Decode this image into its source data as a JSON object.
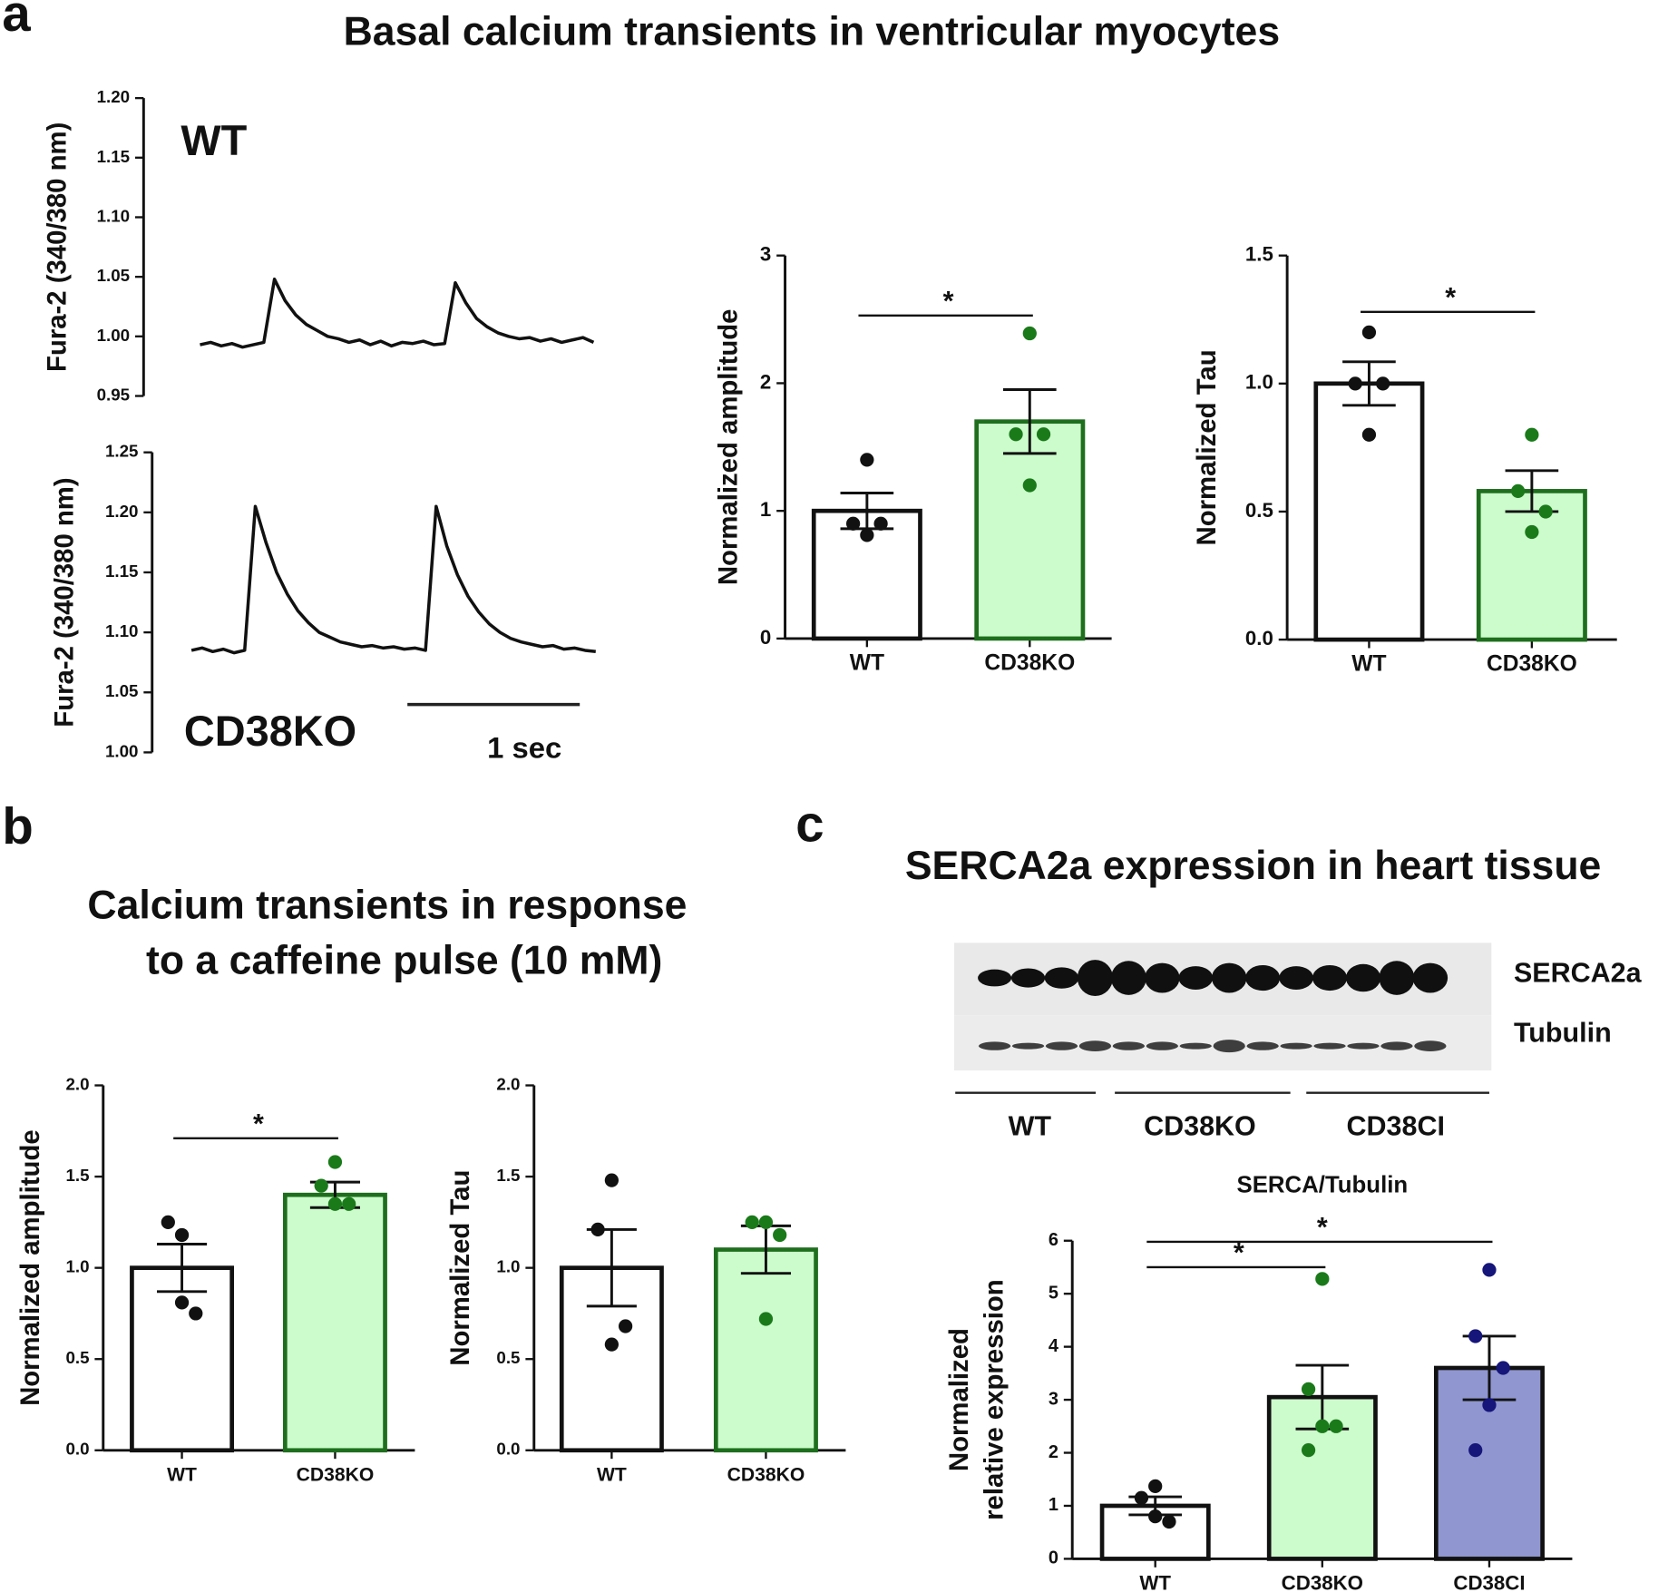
{
  "panels": [
    {
      "label": "a",
      "title": "Basal calcium transients in ventricular myocytes"
    },
    {
      "label": "b",
      "title": [
        "Calcium transients in response",
        "to a caffeine pulse (10 mM)"
      ]
    },
    {
      "label": "c",
      "title": "SERCA2a expression in heart tissue"
    }
  ],
  "blot": {
    "rows": [
      "SERCA2a",
      "Tubulin"
    ],
    "groups": [
      "WT",
      "CD38KO",
      "CD38CI"
    ]
  },
  "chart_data": [
    {
      "type": "line",
      "label": "WT",
      "ylabel": "Fura-2 (340/380 nm)",
      "color": "#111111",
      "ylim": [
        0.95,
        1.2
      ],
      "yticks": [
        0.95,
        {
          "value": 1,
          "label": "1.00"
        },
        1.05,
        {
          "value": 1.1,
          "label": "1.10"
        },
        1.15,
        {
          "value": 1.2,
          "label": "1.20"
        }
      ],
      "values": [
        0.993,
        0.995,
        0.992,
        0.994,
        0.991,
        0.993,
        0.995,
        1.048,
        1.03,
        1.018,
        1.01,
        1.005,
        1.0,
        0.998,
        0.995,
        0.997,
        0.993,
        0.996,
        0.992,
        0.995,
        0.994,
        0.996,
        0.993,
        0.994,
        1.045,
        1.028,
        1.015,
        1.008,
        1.003,
        1.0,
        0.998,
        0.999,
        0.996,
        0.998,
        0.995,
        0.997,
        0.999,
        0.995
      ]
    },
    {
      "type": "line",
      "label": "CD38KO",
      "ylabel": "Fura-2 (340/380 nm)",
      "color": "#111111",
      "scale_bar": "1 sec",
      "ylim": [
        1,
        1.25
      ],
      "yticks": [
        {
          "value": 1,
          "label": "1.00"
        },
        1.05,
        {
          "value": 1.1,
          "label": "1.10"
        },
        1.15,
        {
          "value": 1.2,
          "label": "1.20"
        },
        1.25
      ],
      "values": [
        1.085,
        1.087,
        1.084,
        1.086,
        1.083,
        1.085,
        1.205,
        1.175,
        1.15,
        1.132,
        1.118,
        1.108,
        1.1,
        1.096,
        1.092,
        1.09,
        1.088,
        1.089,
        1.087,
        1.088,
        1.086,
        1.087,
        1.085,
        1.205,
        1.172,
        1.148,
        1.13,
        1.117,
        1.107,
        1.1,
        1.095,
        1.092,
        1.09,
        1.088,
        1.089,
        1.086,
        1.087,
        1.085,
        1.084
      ]
    },
    {
      "type": "bar",
      "ylabel": "Normalized amplitude",
      "categories": [
        "WT",
        "CD38KO"
      ],
      "values": [
        1.0,
        1.7
      ],
      "errors": [
        0.14,
        0.25
      ],
      "points": [
        [
          1.4,
          0.9,
          0.9,
          0.81
        ],
        [
          2.39,
          1.6,
          1.6,
          1.2
        ]
      ],
      "colors": [
        "#ffffff",
        "#ccfccc"
      ],
      "edge_colors": [
        "#111111",
        "#1e6e1e"
      ],
      "point_colors": [
        "#111111",
        "#1a7a1a"
      ],
      "ylim": [
        0,
        3
      ],
      "yticks": [
        0,
        1,
        2,
        3
      ],
      "significance": [
        {
          "from": 0,
          "to": 1,
          "label": "*",
          "y": 2.53
        }
      ]
    },
    {
      "type": "bar",
      "ylabel": "Normalized Tau",
      "categories": [
        "WT",
        "CD38KO"
      ],
      "values": [
        1.0,
        0.58
      ],
      "errors": [
        0.085,
        0.08
      ],
      "points": [
        [
          1.2,
          1.0,
          1.0,
          0.8
        ],
        [
          0.8,
          0.58,
          0.5,
          0.42
        ]
      ],
      "colors": [
        "#ffffff",
        "#ccfccc"
      ],
      "edge_colors": [
        "#111111",
        "#1e6e1e"
      ],
      "point_colors": [
        "#111111",
        "#1a7a1a"
      ],
      "ylim": [
        0,
        1.5
      ],
      "yticks": [
        {
          "value": 0,
          "label": "0.0"
        },
        0.5,
        {
          "value": 1,
          "label": "1.0"
        },
        1.5
      ],
      "significance": [
        {
          "from": 0,
          "to": 1,
          "label": "*",
          "y": 1.28
        }
      ]
    },
    {
      "type": "bar",
      "ylabel": "Normalized amplitude",
      "categories": [
        "WT",
        "CD38KO"
      ],
      "values": [
        1.0,
        1.4
      ],
      "errors": [
        0.13,
        0.07
      ],
      "points": [
        [
          1.18,
          1.25,
          0.75,
          0.81
        ],
        [
          1.58,
          1.45,
          1.35,
          1.35
        ]
      ],
      "colors": [
        "#ffffff",
        "#ccfccc"
      ],
      "edge_colors": [
        "#111111",
        "#1e6e1e"
      ],
      "point_colors": [
        "#111111",
        "#1a7a1a"
      ],
      "ylim": [
        0,
        2
      ],
      "yticks": [
        {
          "value": 0,
          "label": "0.0"
        },
        0.5,
        {
          "value": 1,
          "label": "1.0"
        },
        1.5,
        {
          "value": 2,
          "label": "2.0"
        }
      ],
      "significance": [
        {
          "from": 0,
          "to": 1,
          "label": "*",
          "y": 1.71
        }
      ]
    },
    {
      "type": "bar",
      "ylabel": "Normalized Tau",
      "categories": [
        "WT",
        "CD38KO"
      ],
      "values": [
        1.0,
        1.1
      ],
      "errors": [
        0.21,
        0.13
      ],
      "points": [
        [
          1.48,
          1.21,
          0.68,
          0.58
        ],
        [
          1.25,
          1.25,
          1.18,
          0.72
        ]
      ],
      "colors": [
        "#ffffff",
        "#ccfccc"
      ],
      "edge_colors": [
        "#111111",
        "#1e6e1e"
      ],
      "point_colors": [
        "#111111",
        "#1a7a1a"
      ],
      "ylim": [
        0,
        2
      ],
      "yticks": [
        {
          "value": 0,
          "label": "0.0"
        },
        0.5,
        {
          "value": 1,
          "label": "1.0"
        },
        1.5,
        {
          "value": 2,
          "label": "2.0"
        }
      ]
    },
    {
      "type": "bar",
      "title": "SERCA/Tubulin",
      "ylabel": [
        "Normalized",
        "relative expression"
      ],
      "categories": [
        "WT",
        "CD38KO",
        "CD38CI"
      ],
      "values": [
        1.0,
        3.05,
        3.6
      ],
      "errors": [
        0.17,
        0.6,
        0.6
      ],
      "points": [
        [
          1.37,
          1.15,
          0.7,
          0.8
        ],
        [
          5.28,
          3.2,
          2.5,
          2.5,
          2.05
        ],
        [
          5.45,
          4.2,
          3.6,
          2.9,
          2.05
        ]
      ],
      "colors": [
        "#ffffff",
        "#ccfccc",
        "#8f96d0"
      ],
      "edge_colors": [
        "#111111",
        "#111111",
        "#111111"
      ],
      "point_colors": [
        "#111111",
        "#1a7a1a",
        "#15157a"
      ],
      "ylim": [
        0,
        6
      ],
      "yticks": [
        0,
        1,
        2,
        3,
        4,
        5,
        6
      ],
      "significance": [
        {
          "from": 0,
          "to": 1,
          "label": "*",
          "y": 5.5
        },
        {
          "from": 0,
          "to": 2,
          "label": "*",
          "y": 5.98
        }
      ]
    }
  ]
}
